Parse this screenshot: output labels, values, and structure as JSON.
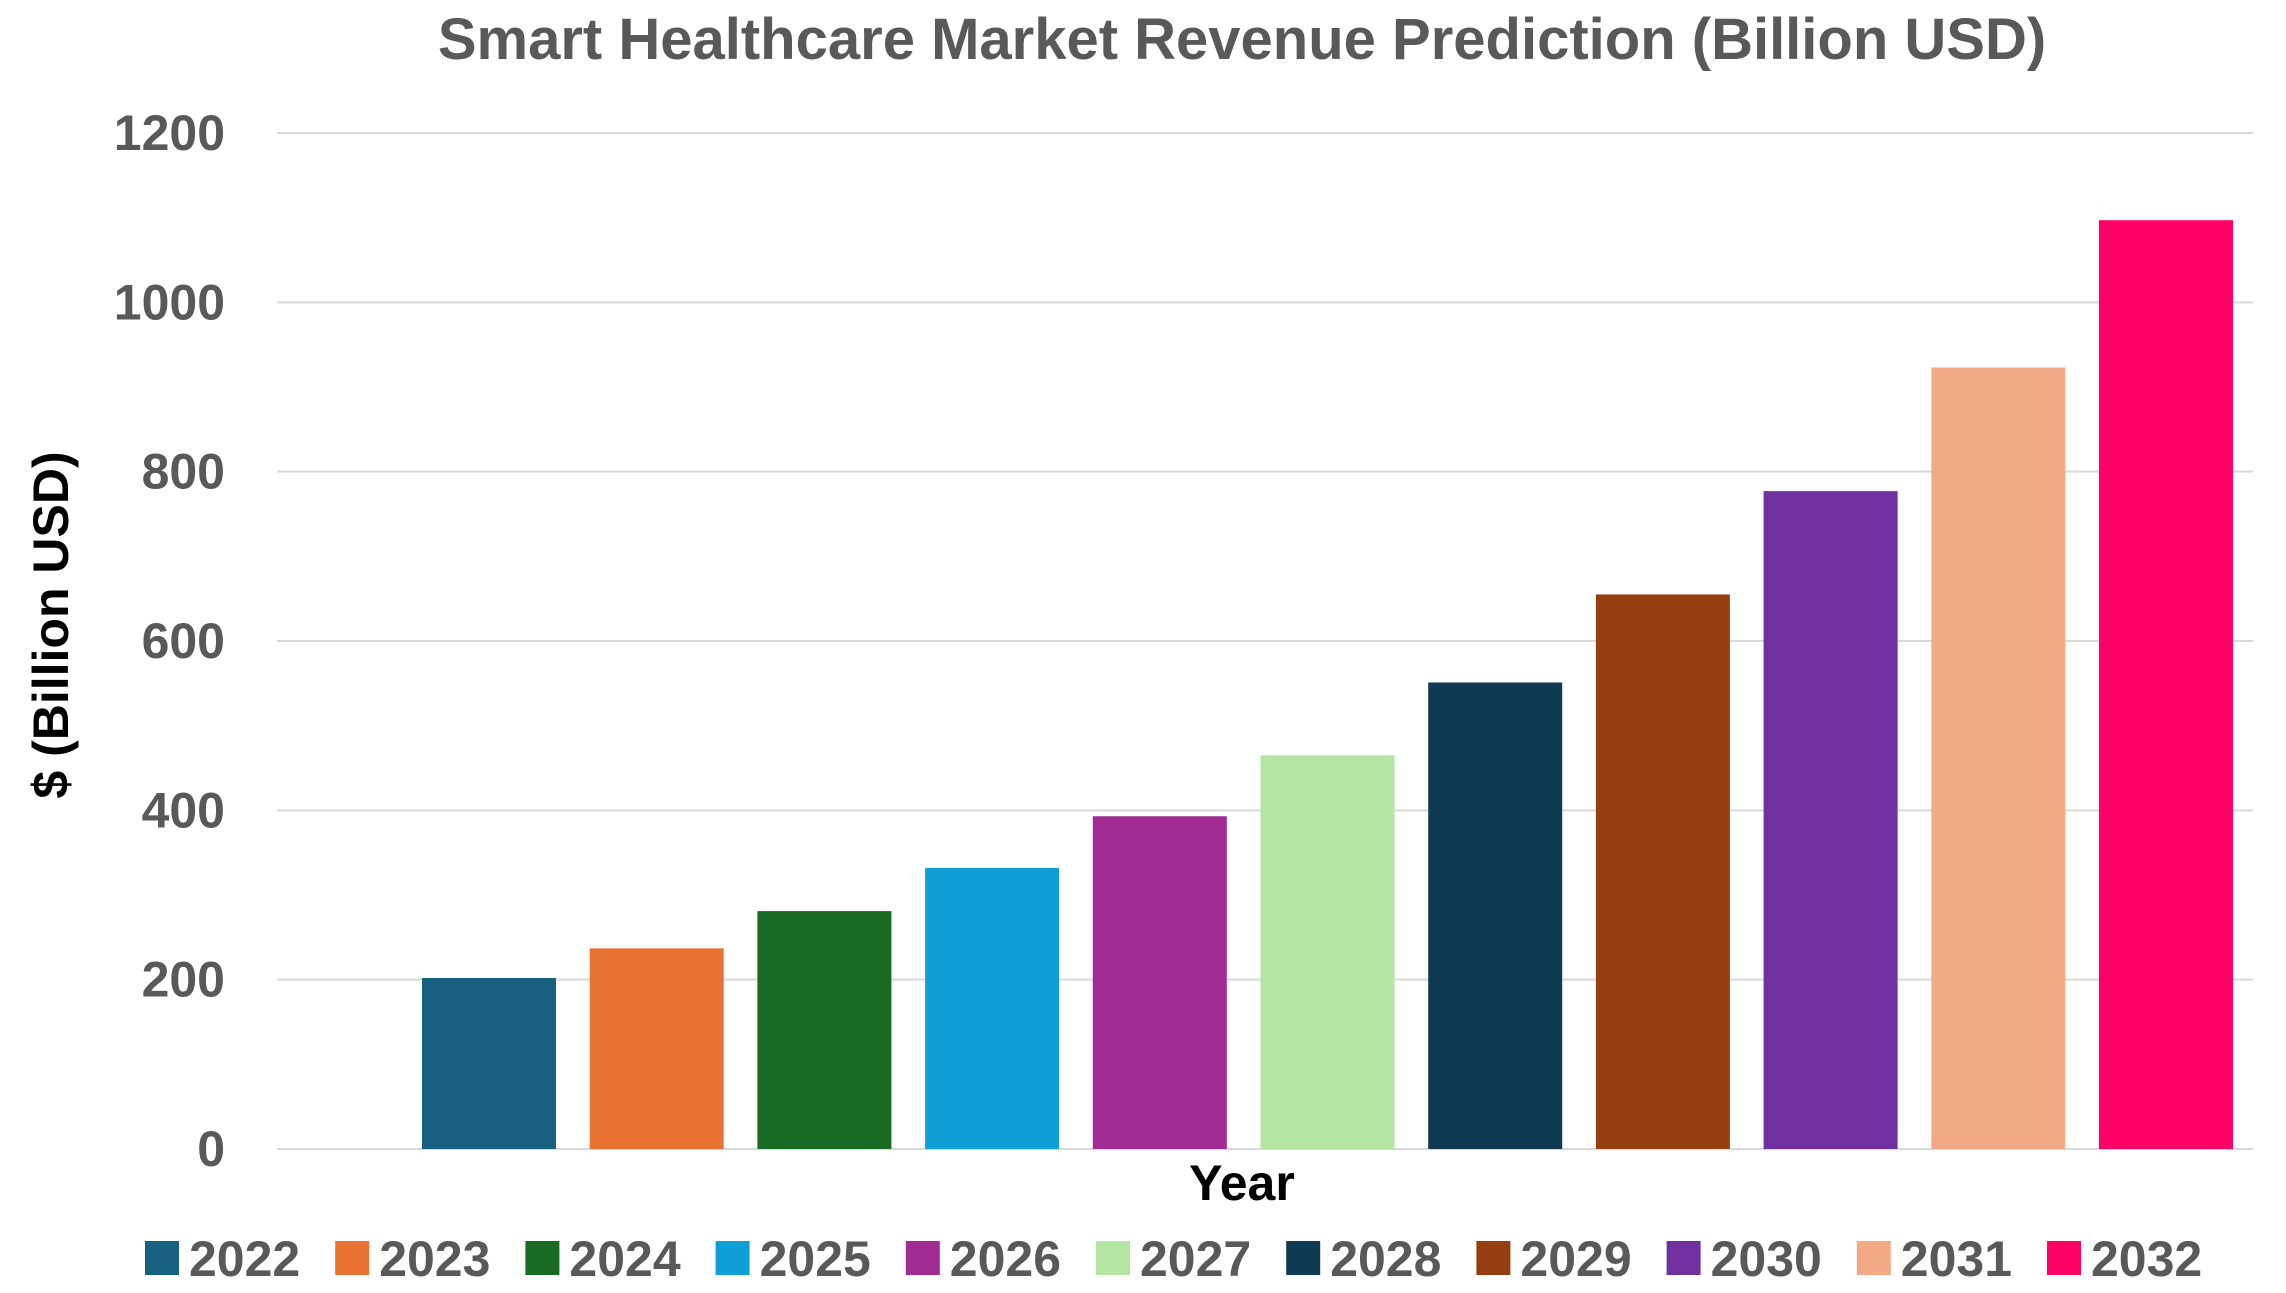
{
  "chart_data": {
    "type": "bar",
    "title": "Smart Healthcare Market Revenue Prediction (Billion USD)",
    "xlabel": "Year",
    "ylabel": "$ (Billion USD)",
    "ylim": [
      0,
      1200
    ],
    "yticks": [
      0,
      200,
      400,
      600,
      800,
      1000,
      1200
    ],
    "grid": true,
    "legend_position": "bottom",
    "categories": [
      "2022",
      "2023",
      "2024",
      "2025",
      "2026",
      "2027",
      "2028",
      "2029",
      "2030",
      "2031",
      "2032"
    ],
    "values": [
      202,
      237,
      281,
      332,
      393,
      465,
      551,
      655,
      777,
      923,
      1097
    ],
    "colors": [
      "#17607f",
      "#e97132",
      "#196b24",
      "#0f9ed5",
      "#a02b93",
      "#b4e5a2",
      "#0e3a52",
      "#953f10",
      "#7030a0",
      "#f1aa85",
      "#ff0066"
    ]
  }
}
